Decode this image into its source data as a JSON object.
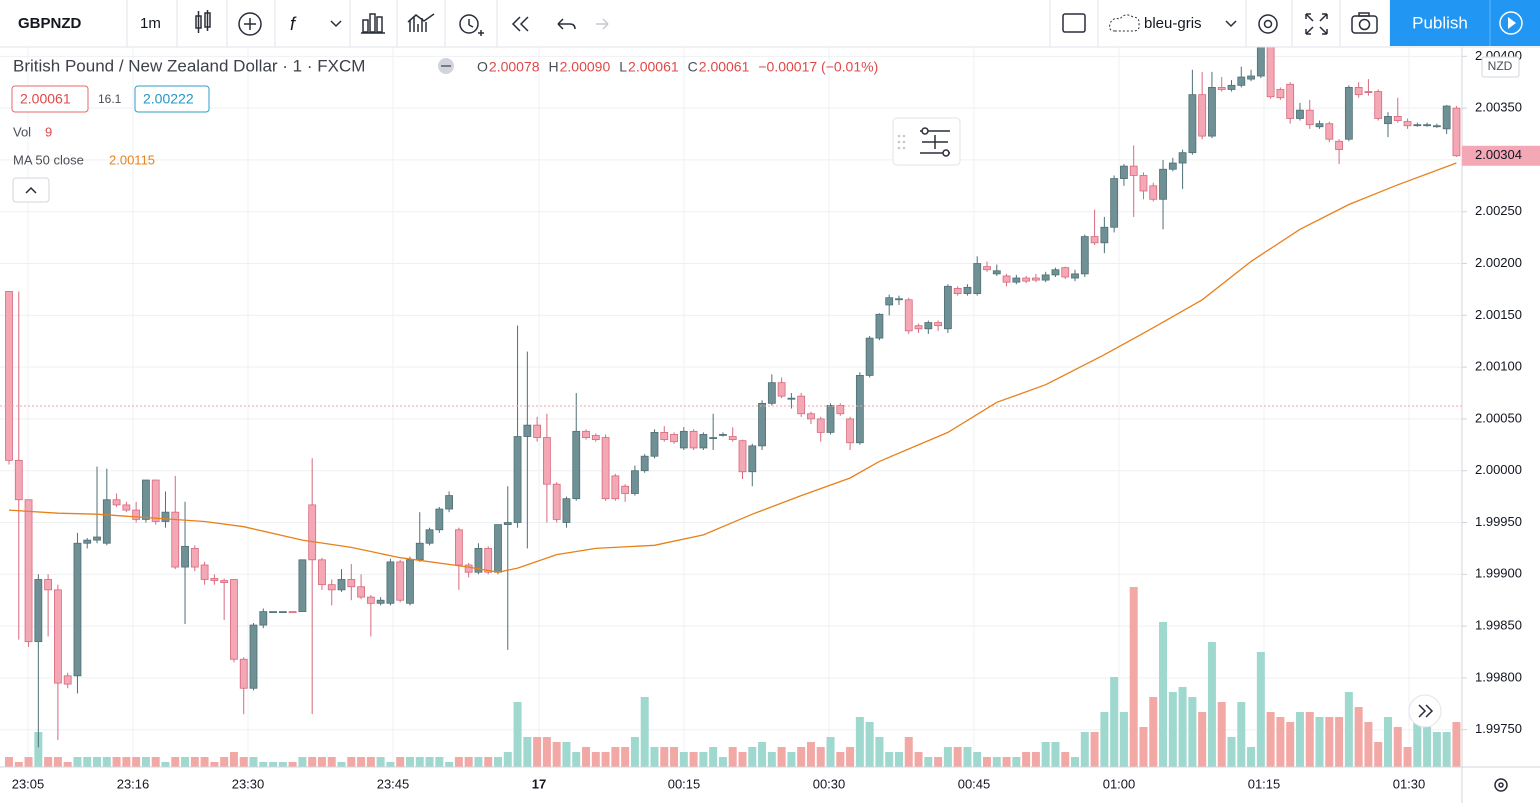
{
  "toolbar": {
    "symbol": "GBPNZD",
    "interval": "1m",
    "layout": "bleu-gris",
    "publish": "Publish"
  },
  "legend": {
    "title": "British Pound / New Zealand Dollar · 1 · FXCM",
    "ohlc": [
      {
        "key": "O",
        "value": "2.00078"
      },
      {
        "key": "H",
        "value": "2.00090"
      },
      {
        "key": "L",
        "value": "2.00061"
      },
      {
        "key": "C",
        "value": "2.00061"
      }
    ],
    "change": "−0.00017 (−0.01%)",
    "bid": "2.00061",
    "spread": "16.1",
    "ask": "2.00222",
    "vol_label": "Vol",
    "vol_value": "9",
    "ma_label": "MA 50 close",
    "ma_value": "2.00115"
  },
  "chart_data": {
    "type": "candlestick",
    "currency": "NZD",
    "up_color": "#6f9196",
    "down_color": "#f4a7b5",
    "up_volume_color": "#9fd8cf",
    "down_volume_color": "#f2a9a6",
    "ylim": [
      1.99714,
      2.00409
    ],
    "yticks": [
      {
        "value": 1.9975,
        "label": "1.99750"
      },
      {
        "value": 1.998,
        "label": "1.99800"
      },
      {
        "value": 1.9985,
        "label": "1.99850"
      },
      {
        "value": 1.999,
        "label": "1.99900"
      },
      {
        "value": 1.9995,
        "label": "1.99950"
      },
      {
        "value": 2,
        "label": "2.00000"
      },
      {
        "value": 2.0005,
        "label": "2.00050"
      },
      {
        "value": 2.001,
        "label": "2.00100"
      },
      {
        "value": 2.0015,
        "label": "2.00150"
      },
      {
        "value": 2.002,
        "label": "2.00200"
      },
      {
        "value": 2.0025,
        "label": "2.00250"
      },
      {
        "value": 2.003,
        "label": "2.00300"
      },
      {
        "value": 2.0035,
        "label": "2.00350"
      },
      {
        "value": 2.004,
        "label": "2.00400"
      }
    ],
    "grid": true,
    "time_labels": [
      "23:05",
      "23:16",
      "23:30",
      "23:45",
      "17",
      "00:15",
      "00:30",
      "00:45",
      "01:00",
      "01:15",
      "01:30"
    ],
    "open": [
      2.00173,
      2.0001,
      1.99972,
      1.99835,
      1.99895,
      1.99885,
      1.99802,
      1.99802,
      1.9993,
      1.99933,
      1.9993,
      1.99972,
      1.99967,
      1.99962,
      1.99953,
      1.99991,
      1.99951,
      1.9996,
      1.99907,
      1.99925,
      1.99909,
      1.99896,
      1.99894,
      1.99895,
      1.99818,
      1.9979,
      1.99851,
      1.99864,
      1.99864,
      1.99864,
      1.99864,
      1.99967,
      1.99914,
      1.9989,
      1.99885,
      1.99895,
      1.99888,
      1.99878,
      1.99872,
      1.99872,
      1.99912,
      1.99872,
      1.99914,
      1.9993,
      1.99943,
      1.99963,
      1.99943,
      1.99909,
      1.99902,
      1.99925,
      1.99902,
      1.99948,
      1.9995,
      2.00033,
      2.00044,
      2.00032,
      1.99987,
      1.9995,
      1.99973,
      2.00038,
      2.00034,
      2.00032,
      1.99995,
      1.99985,
      1.99978,
      2,
      2.00014,
      2.00037,
      2.00035,
      2.00022,
      2.00038,
      2.00022,
      2.00032,
      2.00035,
      2.00033,
      2.00029,
      1.99999,
      2.00024,
      2.00065,
      2.00085,
      2.0007,
      2.00072,
      2.00055,
      2.0005,
      2.00037,
      2.00063,
      2.0005,
      2.00027,
      2.00092,
      2.00128,
      2.0016,
      2.00166,
      2.00165,
      2.0014,
      2.00137,
      2.00143,
      2.00137,
      2.00176,
      2.00171,
      2.00171,
      2.00197,
      2.0019,
      2.00188,
      2.00182,
      2.00186,
      2.00186,
      2.00184,
      2.00189,
      2.00196,
      2.00186,
      2.0019,
      2.00226,
      2.0022,
      2.00235,
      2.00282,
      2.00294,
      2.00285,
      2.00275,
      2.00262,
      2.00291,
      2.00297,
      2.00307,
      2.00363,
      2.00323,
      2.0037,
      2.00368,
      2.00372,
      2.00378,
      2.00381,
      2.0041,
      2.00368,
      2.00373,
      2.0034,
      2.00348,
      2.00332,
      2.00335,
      2.00318,
      2.0032,
      2.0037,
      2.00366,
      2.00366,
      2.00335,
      2.00342,
      2.00337,
      2.00334,
      2.00334,
      2.00333,
      2.0033,
      2.0035
    ],
    "high": [
      2.00173,
      2.00173,
      1.99972,
      1.999,
      1.999,
      1.9989,
      1.99805,
      1.9994,
      1.99935,
      2.00004,
      2.00002,
      1.99978,
      1.9997,
      1.9997,
      1.99991,
      1.99991,
      1.9998,
      1.99995,
      1.9997,
      1.99928,
      1.99912,
      1.999,
      1.99896,
      1.99895,
      1.9982,
      1.99853,
      1.99867,
      1.99864,
      1.99864,
      1.99864,
      1.99914,
      2.00012,
      1.99916,
      1.99895,
      1.99905,
      1.9991,
      1.999,
      1.9988,
      1.99878,
      1.99915,
      1.99914,
      1.99917,
      1.9996,
      1.99945,
      1.99965,
      1.9998,
      1.99945,
      1.99911,
      1.9993,
      1.99927,
      1.99948,
      1.99985,
      2.0014,
      2.00115,
      2.00052,
      2.00055,
      1.99989,
      1.99975,
      2.00075,
      2.0004,
      2.00036,
      2.00035,
      1.99997,
      1.99987,
      2.00005,
      2.00016,
      2.0004,
      2.00043,
      2.00037,
      2.00042,
      2.0004,
      2.00037,
      2.00055,
      2.00037,
      2.00042,
      2.0003,
      2.00026,
      2.00068,
      2.00093,
      2.0009,
      2.00075,
      2.00075,
      2.00057,
      2.00052,
      2.00065,
      2.00065,
      2.00052,
      2.00095,
      2.0013,
      2.00152,
      2.0017,
      2.00169,
      2.00167,
      2.00142,
      2.00145,
      2.00145,
      2.0018,
      2.00178,
      2.0018,
      2.00207,
      2.00202,
      2.00199,
      2.0019,
      2.00189,
      2.00188,
      2.0019,
      2.00192,
      2.00196,
      2.00197,
      2.00194,
      2.00228,
      2.00252,
      2.00245,
      2.00285,
      2.00296,
      2.00314,
      2.00288,
      2.00278,
      2.003,
      2.00302,
      2.0031,
      2.00387,
      2.00385,
      2.00385,
      2.0038,
      2.00377,
      2.0039,
      2.00387,
      2.00413,
      2.00412,
      2.0037,
      2.00375,
      2.00355,
      2.00358,
      2.00338,
      2.00337,
      2.0032,
      2.00372,
      2.00375,
      2.00378,
      2.00368,
      2.00346,
      2.0036,
      2.0034,
      2.00336,
      2.00336,
      2.00335,
      2.00353,
      2.00352
    ],
    "low": [
      2.00006,
      1.99837,
      1.9983,
      1.99733,
      1.9984,
      1.9974,
      1.9979,
      1.99785,
      1.99925,
      1.9993,
      1.99928,
      1.99965,
      1.9996,
      1.9995,
      1.9995,
      1.99948,
      1.99945,
      1.99905,
      1.99852,
      1.99903,
      1.9989,
      1.9989,
      1.99856,
      1.99815,
      1.99765,
      1.99788,
      1.99848,
      1.99864,
      1.99864,
      1.99863,
      1.99864,
      1.99765,
      1.99885,
      1.9987,
      1.99883,
      1.99875,
      1.99876,
      1.9984,
      1.9987,
      1.9987,
      1.99873,
      1.9987,
      1.99912,
      1.99928,
      1.9994,
      1.9996,
      1.99885,
      1.99897,
      1.999,
      1.999,
      1.999,
      1.99827,
      1.99945,
      1.99925,
      2.00028,
      1.9995,
      1.9995,
      1.99945,
      1.99971,
      2.0003,
      2.00028,
      1.99971,
      1.99971,
      1.9997,
      1.99976,
      1.99998,
      2.00012,
      2.00028,
      2.00026,
      2.0002,
      2.0002,
      2.0002,
      2.0002,
      2.00033,
      2.00028,
      1.99992,
      1.99985,
      2.0002,
      2.00063,
      2.0007,
      2.0006,
      2.00052,
      2.00045,
      2.00028,
      2.00035,
      2.00053,
      2.0002,
      2.00025,
      2.0009,
      2.00126,
      2.0015,
      2.0016,
      2.00132,
      2.00133,
      2.00132,
      2.00135,
      2.00133,
      2.00169,
      2.00169,
      2.00169,
      2.00192,
      2.00188,
      2.00178,
      2.0018,
      2.00181,
      2.00182,
      2.00182,
      2.00187,
      2.00185,
      2.00183,
      2.00187,
      2.00218,
      2.0021,
      2.0023,
      2.00275,
      2.00245,
      2.00262,
      2.0026,
      2.00233,
      2.00289,
      2.00272,
      2.00305,
      2.0032,
      2.00321,
      2.00366,
      2.00366,
      2.0037,
      2.00376,
      2.00379,
      2.00359,
      2.00358,
      2.00335,
      2.00338,
      2.0033,
      2.0033,
      2.00317,
      2.00296,
      2.00318,
      2.0036,
      2.00362,
      2.00338,
      2.00322,
      2.00336,
      2.0033,
      2.00332,
      2.00332,
      2.00331,
      2.00325,
      2.00303
    ],
    "close": [
      2.0001,
      1.99972,
      1.99835,
      1.99895,
      1.99885,
      1.99795,
      1.99794,
      1.9993,
      1.99933,
      1.99936,
      1.99972,
      1.99967,
      1.99962,
      1.99953,
      1.99991,
      1.99951,
      1.9996,
      1.99907,
      1.99927,
      1.99907,
      1.99895,
      1.99894,
      1.99892,
      1.99818,
      1.9979,
      1.99851,
      1.99864,
      1.99864,
      1.99864,
      1.99863,
      1.99914,
      1.99914,
      1.9989,
      1.99885,
      1.99895,
      1.99888,
      1.99878,
      1.99872,
      1.99875,
      1.99912,
      1.99875,
      1.99914,
      1.9993,
      1.99943,
      1.99963,
      1.99976,
      1.99909,
      1.99902,
      1.99925,
      1.99902,
      1.99948,
      1.9995,
      2.00033,
      2.00044,
      2.00032,
      1.99987,
      1.99953,
      1.99973,
      2.00038,
      2.00032,
      2.0003,
      1.99973,
      1.99973,
      1.99978,
      2,
      2.00014,
      2.00037,
      2.0003,
      2.00028,
      2.00038,
      2.00022,
      2.00035,
      2.00032,
      2.00035,
      2.0003,
      1.99999,
      2.00024,
      2.00065,
      2.00085,
      2.00072,
      2.0007,
      2.00055,
      2.0005,
      2.00037,
      2.00063,
      2.00055,
      2.00027,
      2.00092,
      2.00128,
      2.00151,
      2.00167,
      2.00166,
      2.00135,
      2.00137,
      2.00143,
      2.0014,
      2.00178,
      2.00171,
      2.00177,
      2.002,
      2.00194,
      2.00193,
      2.00182,
      2.00186,
      2.00183,
      2.00184,
      2.00189,
      2.00194,
      2.00187,
      2.0019,
      2.00226,
      2.0022,
      2.00235,
      2.00282,
      2.00294,
      2.00285,
      2.0027,
      2.00262,
      2.00291,
      2.00297,
      2.00307,
      2.00363,
      2.00323,
      2.0037,
      2.00368,
      2.00372,
      2.0038,
      2.00381,
      2.00412,
      2.00361,
      2.0036,
      2.0034,
      2.00348,
      2.00334,
      2.00335,
      2.0032,
      2.0031,
      2.0037,
      2.00363,
      2.00365,
      2.0034,
      2.00342,
      2.00338,
      2.00333,
      2.00334,
      2.00334,
      2.00333,
      2.00352,
      2.00304
    ],
    "volume": [
      2,
      1,
      2,
      7,
      2,
      2,
      1,
      2,
      2,
      2,
      2,
      2,
      2,
      2,
      2,
      2,
      1,
      2,
      2,
      2,
      2,
      1,
      2,
      3,
      2,
      2,
      1,
      1,
      1,
      1,
      2,
      2,
      2,
      2,
      1,
      2,
      2,
      2,
      2,
      1,
      2,
      2,
      2,
      2,
      2,
      1,
      2,
      2,
      2,
      2,
      2,
      3,
      13,
      6,
      6,
      6,
      5,
      5,
      3,
      4,
      3,
      3,
      4,
      4,
      6,
      14,
      4,
      4,
      4,
      3,
      3,
      3,
      4,
      2,
      4,
      3,
      4,
      5,
      3,
      4,
      3,
      4,
      5,
      4,
      6,
      3,
      4,
      10,
      9,
      6,
      3,
      3,
      6,
      3,
      2,
      2,
      4,
      4,
      4,
      3,
      2,
      2,
      2,
      2,
      3,
      3,
      5,
      5,
      3,
      2,
      7,
      7,
      11,
      18,
      11,
      36,
      8,
      14,
      29,
      15,
      16,
      14,
      11,
      25,
      13,
      6,
      13,
      4,
      23,
      11,
      10,
      9,
      11,
      11,
      10,
      10,
      10,
      15,
      12,
      9,
      5,
      10,
      8,
      4,
      10,
      8,
      7,
      7,
      9
    ],
    "ma": {
      "name": "MA 50 close",
      "color": "#e8801a",
      "x": [
        0,
        5,
        9,
        20,
        24,
        30,
        35,
        40,
        47,
        50,
        52,
        56,
        60,
        66,
        71,
        76,
        81,
        86,
        89,
        96,
        101,
        106,
        112,
        117,
        122,
        127,
        132,
        137,
        142,
        148
      ],
      "values": [
        1.99962,
        1.99959,
        1.99958,
        1.99951,
        1.99946,
        1.99933,
        1.99926,
        1.99916,
        1.99907,
        1.99902,
        1.99906,
        1.99919,
        1.99925,
        1.99928,
        1.99938,
        1.99958,
        1.99976,
        1.99993,
        2.00009,
        2.00037,
        2.00066,
        2.00083,
        2.00112,
        2.00138,
        2.00165,
        2.00202,
        2.00233,
        2.00257,
        2.00276,
        2.00297
      ]
    }
  }
}
